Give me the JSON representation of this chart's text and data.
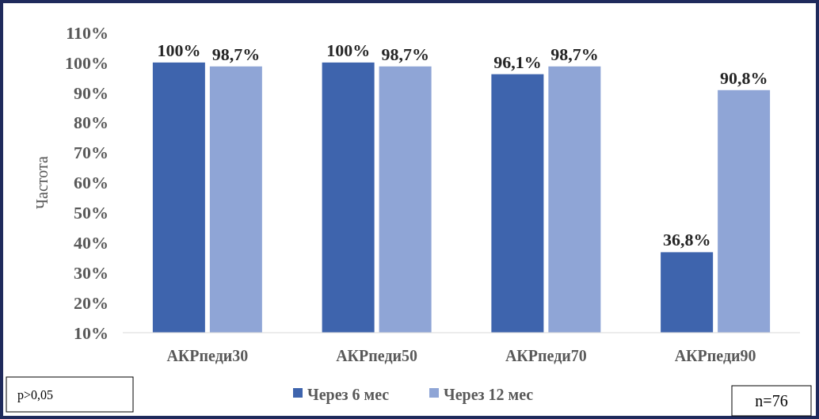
{
  "chart_data": {
    "type": "bar",
    "ylabel": "Частота",
    "categories": [
      "АКРпеди30",
      "АКРпеди50",
      "АКРпеди70",
      "АКРпеди90"
    ],
    "series": [
      {
        "name": "Через 6 мес",
        "color": "#3e64ad",
        "values": [
          100,
          100,
          96.1,
          36.8
        ],
        "value_labels": [
          "100%",
          "100%",
          "96,1%",
          "36,8%"
        ]
      },
      {
        "name": "Через 12 мес",
        "color": "#8fa5d6",
        "values": [
          98.7,
          98.7,
          98.7,
          90.8
        ],
        "value_labels": [
          "98,7%",
          "98,7%",
          "98,7%",
          "90,8%"
        ]
      }
    ],
    "ylim": [
      10,
      110
    ],
    "yticks": [
      {
        "value": 10,
        "label": "10%"
      },
      {
        "value": 20,
        "label": "20%"
      },
      {
        "value": 30,
        "label": "30%"
      },
      {
        "value": 40,
        "label": "40%"
      },
      {
        "value": 50,
        "label": "50%"
      },
      {
        "value": 60,
        "label": "60%"
      },
      {
        "value": 70,
        "label": "70%"
      },
      {
        "value": 80,
        "label": "80%"
      },
      {
        "value": 90,
        "label": "90%"
      },
      {
        "value": 100,
        "label": "100%"
      },
      {
        "value": 110,
        "label": "110%"
      }
    ],
    "grid": false,
    "legend": "bottom",
    "annotations": [
      "p>0,05",
      "n=76"
    ]
  }
}
